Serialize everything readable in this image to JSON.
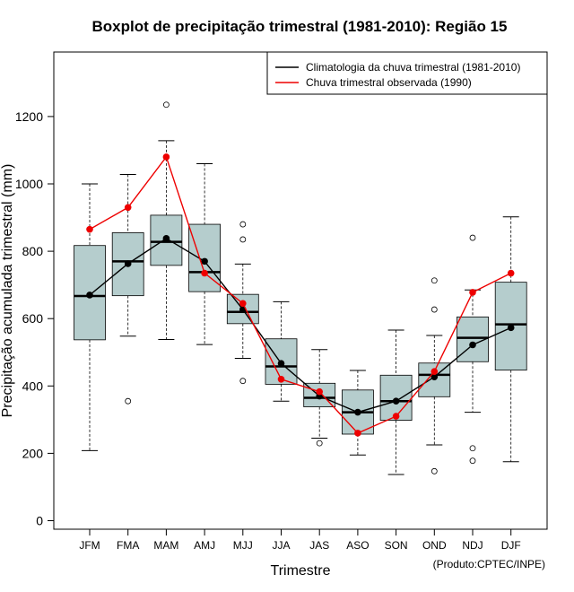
{
  "chart_data": {
    "type": "boxplot",
    "title": "Boxplot de precipitação trimestral (1981-2010): Região 15",
    "xlabel": "Trimestre",
    "ylabel": "Precipitação acumulada trimestral (mm)",
    "credit": "(Produto:CPTEC/INPE)",
    "ylim": [
      0,
      1340
    ],
    "yticks": [
      0,
      200,
      400,
      600,
      800,
      1000,
      1200
    ],
    "categories": [
      "JFM",
      "FMA",
      "MAM",
      "AMJ",
      "MJJ",
      "JJA",
      "JAS",
      "ASO",
      "SON",
      "OND",
      "NDJ",
      "DJF"
    ],
    "boxes": [
      {
        "min": 208,
        "q1": 537,
        "median": 667,
        "q3": 817,
        "max": 1000,
        "outliers": []
      },
      {
        "min": 548,
        "q1": 668,
        "median": 770,
        "q3": 855,
        "max": 1028,
        "outliers": [
          355
        ]
      },
      {
        "min": 538,
        "q1": 758,
        "median": 828,
        "q3": 907,
        "max": 1128,
        "outliers": [
          1235
        ]
      },
      {
        "min": 523,
        "q1": 680,
        "median": 738,
        "q3": 880,
        "max": 1060,
        "outliers": []
      },
      {
        "min": 482,
        "q1": 585,
        "median": 620,
        "q3": 672,
        "max": 762,
        "outliers": [
          880,
          835,
          415
        ]
      },
      {
        "min": 355,
        "q1": 405,
        "median": 458,
        "q3": 540,
        "max": 650,
        "outliers": []
      },
      {
        "min": 245,
        "q1": 338,
        "median": 365,
        "q3": 408,
        "max": 508,
        "outliers": [
          230
        ]
      },
      {
        "min": 195,
        "q1": 257,
        "median": 322,
        "q3": 388,
        "max": 446,
        "outliers": []
      },
      {
        "min": 137,
        "q1": 298,
        "median": 355,
        "q3": 432,
        "max": 566,
        "outliers": []
      },
      {
        "min": 225,
        "q1": 368,
        "median": 433,
        "q3": 468,
        "max": 550,
        "outliers": [
          713,
          627,
          147
        ]
      },
      {
        "min": 322,
        "q1": 472,
        "median": 543,
        "q3": 605,
        "max": 685,
        "outliers": [
          840,
          215,
          178
        ]
      },
      {
        "min": 175,
        "q1": 447,
        "median": 583,
        "q3": 708,
        "max": 902,
        "outliers": []
      }
    ],
    "series": [
      {
        "name": "Climatologia da chuva trimestral (1981-2010)",
        "color": "#000000",
        "values": [
          670,
          763,
          838,
          770,
          627,
          467,
          370,
          322,
          355,
          427,
          522,
          573
        ]
      },
      {
        "name": "Chuva trimestral observada (1990)",
        "color": "#ee0000",
        "values": [
          865,
          930,
          1080,
          735,
          645,
          420,
          383,
          260,
          310,
          443,
          678,
          735
        ]
      }
    ],
    "box_fill": "#b5cdcd",
    "legend_position": "top-right"
  }
}
